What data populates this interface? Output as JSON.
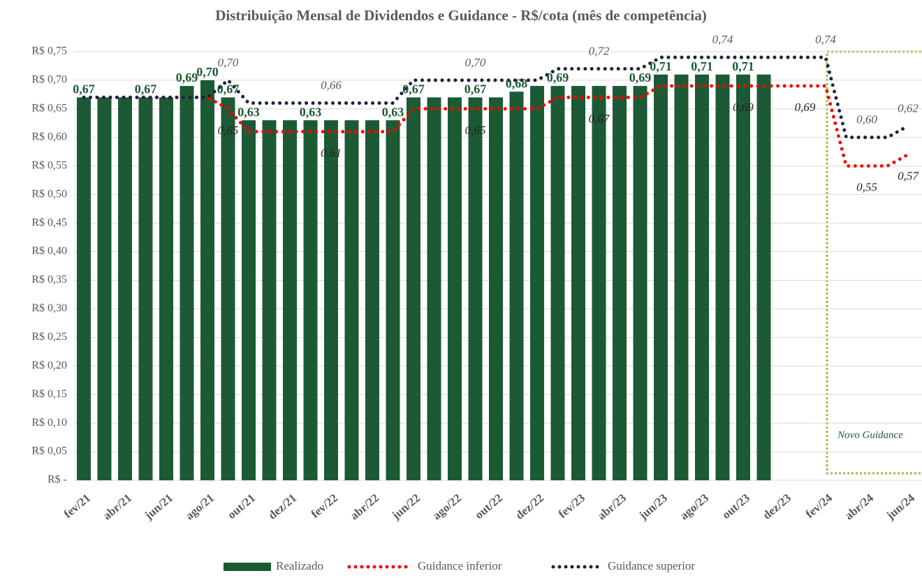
{
  "chart_data": {
    "type": "bar",
    "title": "Distribuição Mensal de Dividendos e Guidance - R$/cota (mês de competência)",
    "categories": [
      "fev/21",
      null,
      "abr/21",
      null,
      "jun/21",
      null,
      "ago/21",
      null,
      "out/21",
      null,
      "dez/21",
      null,
      "fev/22",
      null,
      "abr/22",
      null,
      "jun/22",
      null,
      "ago/22",
      null,
      "out/22",
      null,
      "dez/22",
      null,
      "fev/23",
      null,
      "abr/23",
      null,
      "jun/23",
      null,
      "ago/23",
      null,
      "out/23",
      null,
      "dez/23",
      null,
      "fev/24",
      null,
      "abr/24",
      null,
      "jun/24"
    ],
    "series": [
      {
        "name": "Realizado",
        "type": "bar",
        "color": "#1b5a34",
        "values": [
          0.67,
          0.67,
          0.67,
          0.67,
          0.67,
          0.69,
          0.7,
          0.67,
          0.63,
          0.63,
          0.63,
          0.63,
          0.63,
          0.63,
          0.63,
          0.63,
          0.67,
          0.67,
          0.67,
          0.67,
          0.67,
          0.68,
          0.69,
          0.69,
          0.69,
          0.69,
          0.69,
          0.69,
          0.71,
          0.71,
          0.71,
          0.71,
          0.71,
          0.71,
          null,
          null,
          null,
          null,
          null,
          null,
          null
        ],
        "value_labels": [
          "0,67",
          null,
          null,
          "0,67",
          null,
          "0,69",
          "0,70",
          "0,67",
          "0,63",
          null,
          null,
          "0,63",
          null,
          null,
          null,
          "0,63",
          "0,67",
          null,
          null,
          "0,67",
          null,
          "0,68",
          null,
          "0,69",
          null,
          null,
          null,
          "0,69",
          "0,71",
          null,
          "0,71",
          null,
          "0,71",
          null,
          null,
          null,
          null,
          null,
          null,
          null,
          null
        ]
      },
      {
        "name": "Guidance inferior",
        "type": "line",
        "color": "#ff0000",
        "values": [
          0.67,
          0.67,
          0.67,
          0.67,
          0.67,
          0.67,
          0.67,
          0.65,
          0.61,
          0.61,
          0.61,
          0.61,
          0.61,
          0.61,
          0.61,
          0.61,
          0.65,
          0.65,
          0.65,
          0.65,
          0.65,
          0.65,
          0.65,
          0.67,
          0.67,
          0.67,
          0.67,
          0.67,
          0.69,
          0.69,
          0.69,
          0.69,
          0.69,
          0.69,
          0.69,
          0.69,
          0.69,
          0.55,
          0.55,
          0.55,
          0.57
        ],
        "value_labels": [
          null,
          null,
          null,
          null,
          null,
          null,
          null,
          "0,65",
          null,
          null,
          null,
          null,
          "0,61",
          null,
          null,
          null,
          null,
          null,
          null,
          "0,65",
          null,
          null,
          null,
          null,
          null,
          "0,67",
          null,
          null,
          null,
          null,
          null,
          null,
          "0,69",
          null,
          null,
          "0,69",
          null,
          null,
          "0,55",
          null,
          "0,57"
        ]
      },
      {
        "name": "Guidance superior",
        "type": "line",
        "color": "#1c2140",
        "values": [
          0.67,
          0.67,
          0.67,
          0.67,
          0.67,
          0.67,
          0.67,
          0.7,
          0.66,
          0.66,
          0.66,
          0.66,
          0.66,
          0.66,
          0.66,
          0.66,
          0.7,
          0.7,
          0.7,
          0.7,
          0.7,
          0.7,
          0.7,
          0.72,
          0.72,
          0.72,
          0.72,
          0.72,
          0.74,
          0.74,
          0.74,
          0.74,
          0.74,
          0.74,
          0.74,
          0.74,
          0.74,
          0.6,
          0.6,
          0.6,
          0.62
        ],
        "value_labels": [
          null,
          null,
          null,
          null,
          null,
          null,
          null,
          "0,70",
          null,
          null,
          null,
          null,
          "0,66",
          null,
          null,
          null,
          null,
          null,
          null,
          "0,70",
          null,
          null,
          null,
          null,
          null,
          "0,72",
          null,
          null,
          null,
          null,
          null,
          "0,74",
          null,
          null,
          null,
          null,
          "0,74",
          null,
          "0,60",
          null,
          "0,62"
        ]
      }
    ],
    "ylim": [
      0,
      0.75
    ],
    "yticks": [
      {
        "value": 0,
        "label": "R$ -"
      },
      {
        "value": 0.05,
        "label": "R$ 0,05"
      },
      {
        "value": 0.1,
        "label": "R$ 0,10"
      },
      {
        "value": 0.15,
        "label": "R$ 0,15"
      },
      {
        "value": 0.2,
        "label": "R$ 0,20"
      },
      {
        "value": 0.25,
        "label": "R$ 0,25"
      },
      {
        "value": 0.3,
        "label": "R$ 0,30"
      },
      {
        "value": 0.35,
        "label": "R$ 0,35"
      },
      {
        "value": 0.4,
        "label": "R$ 0,40"
      },
      {
        "value": 0.45,
        "label": "R$ 0,45"
      },
      {
        "value": 0.5,
        "label": "R$ 0,50"
      },
      {
        "value": 0.55,
        "label": "R$ 0,55"
      },
      {
        "value": 0.6,
        "label": "R$ 0,60"
      },
      {
        "value": 0.65,
        "label": "R$ 0,65"
      },
      {
        "value": 0.7,
        "label": "R$ 0,70"
      },
      {
        "value": 0.75,
        "label": "R$ 0,75"
      }
    ],
    "grid": true,
    "legend": "bottom",
    "annotation": "Novo Guidance"
  }
}
